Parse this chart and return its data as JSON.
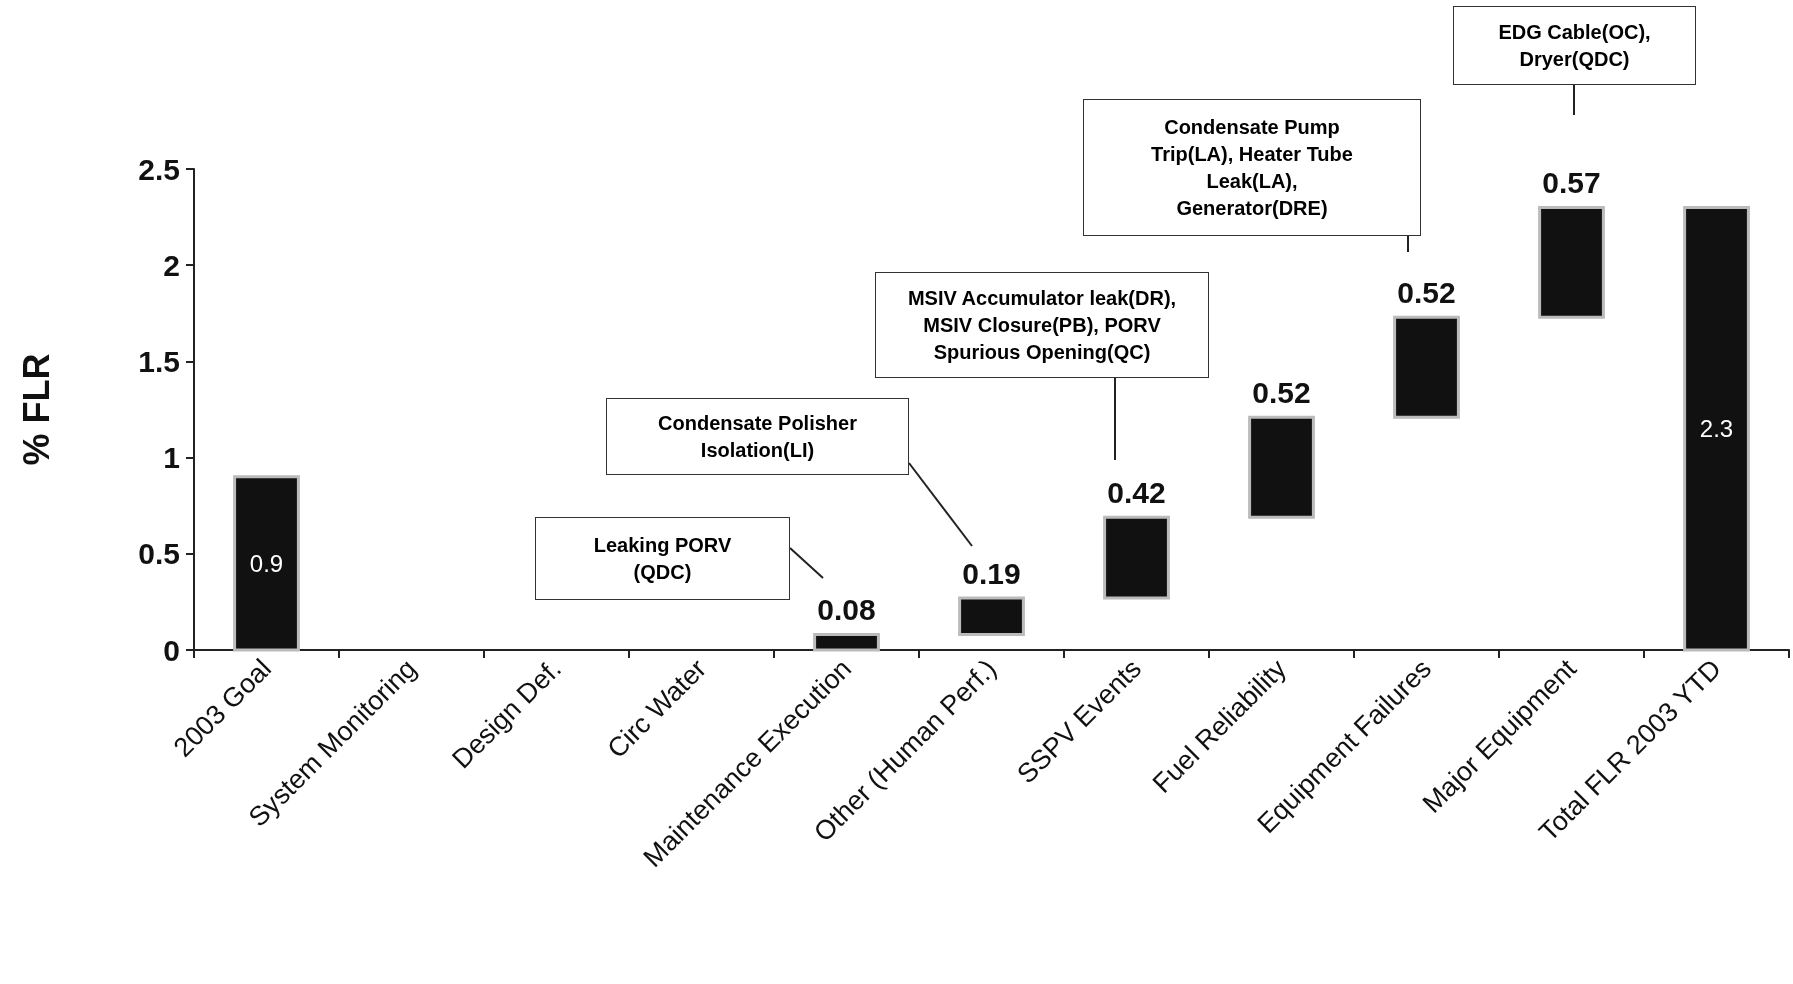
{
  "chart_data": {
    "type": "bar",
    "ylabel": "% FLR",
    "categories": [
      "2003 Goal",
      "System Monitoring",
      "Design Def.",
      "Circ Water",
      "Maintenance Execution",
      "Other (Human Perf.)",
      "SSPV Events",
      "Fuel Reliability",
      "Equipment Failures",
      "Major Equipment",
      "Total FLR 2003 YTD"
    ],
    "values": [
      0.9,
      null,
      null,
      null,
      0.08,
      0.19,
      0.42,
      0.52,
      0.52,
      0.57,
      2.3
    ],
    "base": [
      0,
      null,
      null,
      null,
      0,
      0.08,
      0.27,
      0.69,
      1.21,
      1.73,
      0
    ],
    "color": "#111111",
    "ylim": [
      0,
      2.5
    ],
    "yticks": [
      0,
      0.5,
      1,
      1.5,
      2,
      2.5
    ],
    "grid": false,
    "data_labels": true,
    "annotations": [
      "Leaking PORV\n(QDC)",
      "Condensate Polisher\nIsolation(LI)",
      "MSIV Accumulator leak(DR),\nMSIV Closure(PB), PORV\nSpurious Opening(QC)",
      "Condensate Pump\nTrip(LA), Heater Tube\nLeak(LA),\nGenerator(DRE)",
      "EDG Cable(OC),\nDryer(QDC)"
    ]
  }
}
